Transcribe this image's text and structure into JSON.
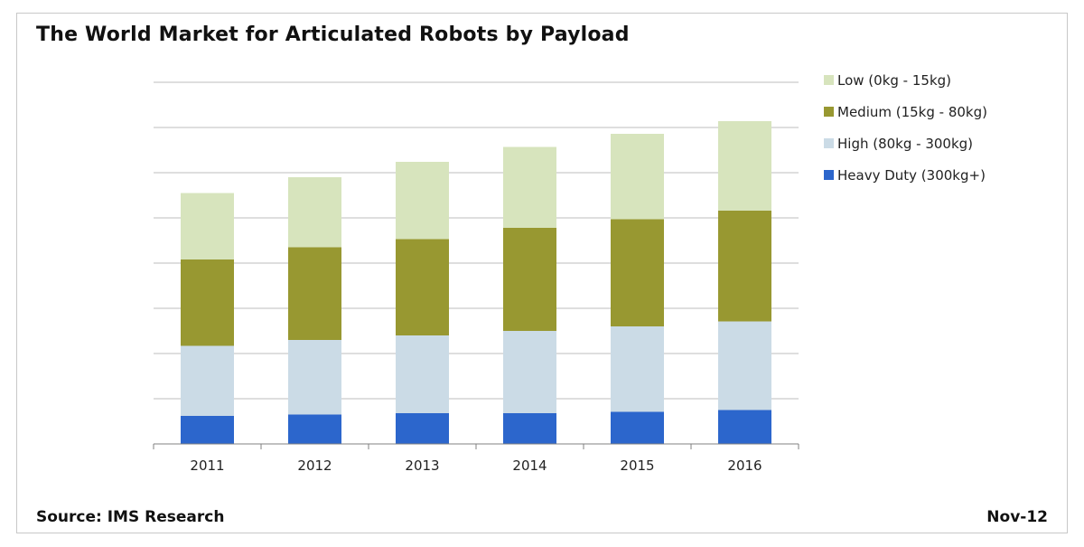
{
  "title": "The World Market for Articulated Robots by Payload",
  "footer": {
    "source": "Source: IMS Research",
    "date": "Nov-12"
  },
  "colors": {
    "low": "#d7e4bd",
    "medium": "#989831",
    "high": "#cbdbe6",
    "heavy": "#2c66cc",
    "grid": "#bdbdbd",
    "axis": "#808080"
  },
  "chart_data": {
    "type": "bar",
    "stacked": true,
    "categories": [
      "2011",
      "2012",
      "2013",
      "2014",
      "2015",
      "2016"
    ],
    "ylim": [
      0,
      8
    ],
    "gridlines": 8,
    "y_tick_labels": false,
    "legend_position": "right",
    "series": [
      {
        "name": "Heavy Duty (300kg+)",
        "key": "heavy",
        "values": [
          0.62,
          0.65,
          0.68,
          0.68,
          0.71,
          0.75
        ]
      },
      {
        "name": "High (80kg - 300kg)",
        "key": "high",
        "values": [
          1.55,
          1.65,
          1.72,
          1.82,
          1.89,
          1.96
        ]
      },
      {
        "name": "Medium (15kg - 80kg)",
        "key": "medium",
        "values": [
          1.91,
          2.05,
          2.13,
          2.28,
          2.37,
          2.45
        ]
      },
      {
        "name": "Low (0kg - 15kg)",
        "key": "low",
        "values": [
          1.47,
          1.55,
          1.71,
          1.79,
          1.89,
          1.98
        ]
      }
    ]
  }
}
